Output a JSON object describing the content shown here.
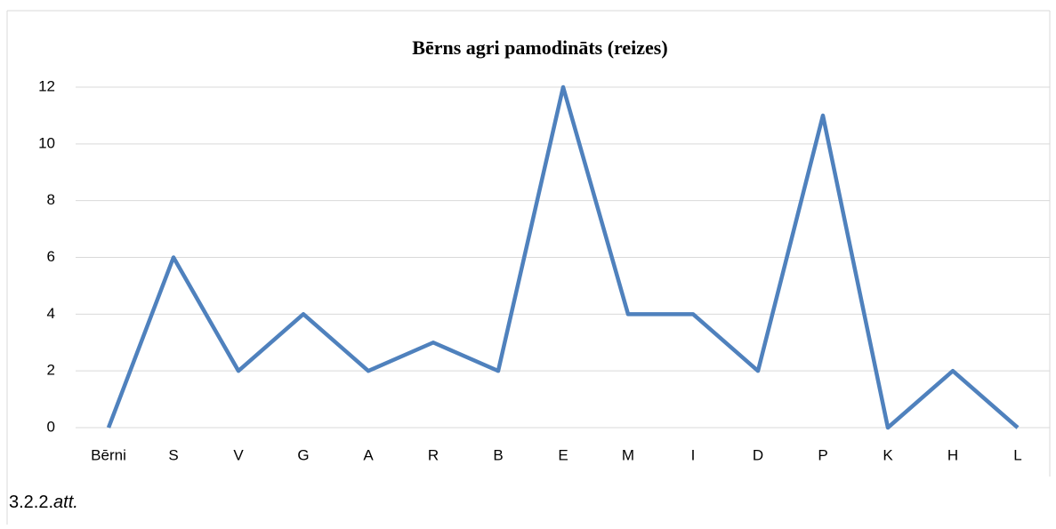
{
  "chart_data": {
    "type": "line",
    "title": "Bērns agri pamodināts (reizes)",
    "categories": [
      "Bērni",
      "S",
      "V",
      "G",
      "A",
      "R",
      "B",
      "E",
      "M",
      "I",
      "D",
      "P",
      "K",
      "H",
      "L"
    ],
    "values": [
      0,
      6,
      2,
      4,
      2,
      3,
      2,
      12,
      4,
      4,
      2,
      11,
      0,
      2,
      0
    ],
    "color": "#4f81bd",
    "ylim": [
      0,
      12
    ],
    "yticks": [
      0,
      2,
      4,
      6,
      8,
      10,
      12
    ],
    "grid": true
  },
  "caption": {
    "number": "3.2.2.",
    "suffix": "att."
  }
}
